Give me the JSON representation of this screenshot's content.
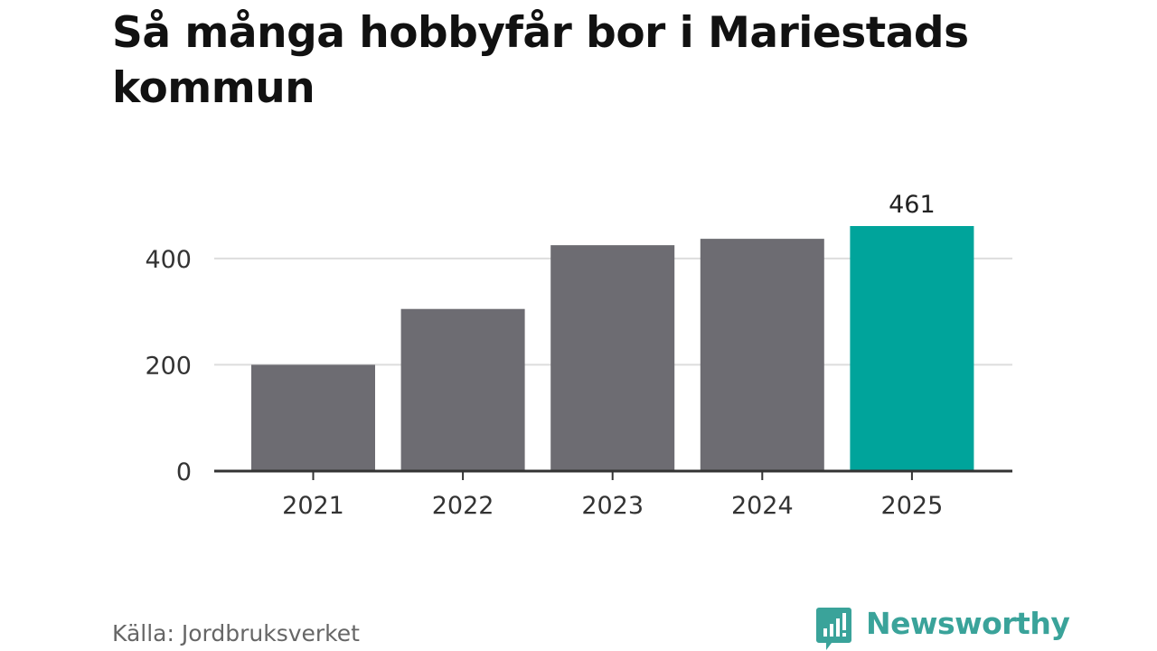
{
  "title": "Så många hobbyfår bor i Mariestads kommun",
  "source": "Källa: Jordbruksverket",
  "brand": {
    "name": "Newsworthy",
    "icon": "chart-speech-bubble-icon",
    "color": "#3aa39a"
  },
  "colors": {
    "bar": "#6d6c72",
    "highlight": "#00a49b",
    "grid": "#dddddd",
    "axis": "#333333"
  },
  "chart_data": {
    "type": "bar",
    "title": "Så många hobbyfår bor i Mariestads kommun",
    "xlabel": "",
    "ylabel": "",
    "categories": [
      "2021",
      "2022",
      "2023",
      "2024",
      "2025"
    ],
    "values": [
      200,
      305,
      425,
      437,
      461
    ],
    "highlight_index": 4,
    "data_labels": [
      {
        "index": 4,
        "text": "461"
      }
    ],
    "ylim": [
      0,
      461
    ],
    "yticks": [
      0,
      200,
      400
    ],
    "ytick_labels": [
      "0",
      "200",
      "400"
    ],
    "grid": true,
    "legend": "none"
  }
}
